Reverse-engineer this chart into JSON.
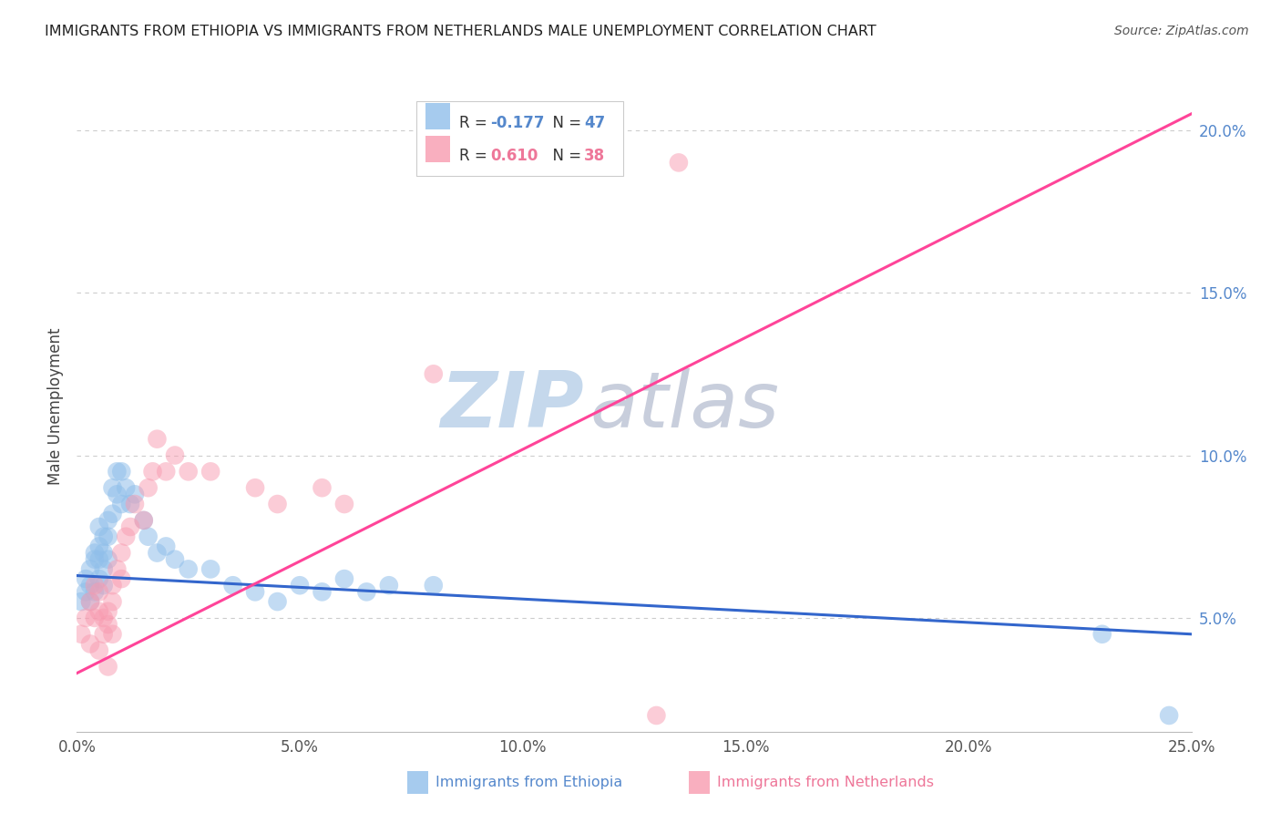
{
  "title": "IMMIGRANTS FROM ETHIOPIA VS IMMIGRANTS FROM NETHERLANDS MALE UNEMPLOYMENT CORRELATION CHART",
  "source": "Source: ZipAtlas.com",
  "ylabel": "Male Unemployment",
  "x_min": 0.0,
  "x_max": 0.25,
  "y_min": 0.015,
  "y_max": 0.215,
  "y_ticks": [
    0.05,
    0.1,
    0.15,
    0.2
  ],
  "y_tick_labels": [
    "5.0%",
    "10.0%",
    "15.0%",
    "20.0%"
  ],
  "x_ticks": [
    0.0,
    0.05,
    0.1,
    0.15,
    0.2,
    0.25
  ],
  "x_tick_labels": [
    "0.0%",
    "5.0%",
    "10.0%",
    "15.0%",
    "20.0%",
    "25.0%"
  ],
  "legend_r1": "R = ",
  "legend_v1": "-0.177",
  "legend_n1": "  N = ",
  "legend_nv1": "47",
  "legend_r2": "R =  ",
  "legend_v2": "0.610",
  "legend_n2": "  N = ",
  "legend_nv2": "38",
  "ethiopia_color": "#90BFEA",
  "netherlands_color": "#F89BB0",
  "regression_blue": "#3366CC",
  "regression_pink": "#FF4499",
  "watermark_zip": "ZIP",
  "watermark_atlas": "atlas",
  "watermark_color": "#C5D8EC",
  "watermark_atlas_color": "#C8CEDC",
  "bottom_legend_eth": "Immigrants from Ethiopia",
  "bottom_legend_neth": "Immigrants from Netherlands",
  "blue_label_color": "#5588CC",
  "pink_label_color": "#EE7799",
  "ethiopia_scatter_x": [
    0.001,
    0.002,
    0.002,
    0.003,
    0.003,
    0.003,
    0.004,
    0.004,
    0.004,
    0.005,
    0.005,
    0.005,
    0.005,
    0.006,
    0.006,
    0.006,
    0.006,
    0.007,
    0.007,
    0.007,
    0.008,
    0.008,
    0.009,
    0.009,
    0.01,
    0.01,
    0.011,
    0.012,
    0.013,
    0.015,
    0.016,
    0.018,
    0.02,
    0.022,
    0.025,
    0.03,
    0.035,
    0.04,
    0.045,
    0.05,
    0.055,
    0.06,
    0.065,
    0.07,
    0.08,
    0.23,
    0.245
  ],
  "ethiopia_scatter_y": [
    0.055,
    0.058,
    0.062,
    0.06,
    0.055,
    0.065,
    0.07,
    0.058,
    0.068,
    0.062,
    0.072,
    0.068,
    0.078,
    0.07,
    0.065,
    0.075,
    0.06,
    0.075,
    0.068,
    0.08,
    0.082,
    0.09,
    0.088,
    0.095,
    0.085,
    0.095,
    0.09,
    0.085,
    0.088,
    0.08,
    0.075,
    0.07,
    0.072,
    0.068,
    0.065,
    0.065,
    0.06,
    0.058,
    0.055,
    0.06,
    0.058,
    0.062,
    0.058,
    0.06,
    0.06,
    0.045,
    0.02
  ],
  "netherlands_scatter_x": [
    0.001,
    0.002,
    0.003,
    0.003,
    0.004,
    0.004,
    0.005,
    0.005,
    0.005,
    0.006,
    0.006,
    0.007,
    0.007,
    0.007,
    0.008,
    0.008,
    0.008,
    0.009,
    0.01,
    0.01,
    0.011,
    0.012,
    0.013,
    0.015,
    0.016,
    0.017,
    0.018,
    0.02,
    0.022,
    0.025,
    0.03,
    0.04,
    0.045,
    0.055,
    0.06,
    0.08,
    0.13,
    0.135
  ],
  "netherlands_scatter_y": [
    0.045,
    0.05,
    0.055,
    0.042,
    0.05,
    0.06,
    0.052,
    0.058,
    0.04,
    0.05,
    0.045,
    0.048,
    0.052,
    0.035,
    0.055,
    0.06,
    0.045,
    0.065,
    0.07,
    0.062,
    0.075,
    0.078,
    0.085,
    0.08,
    0.09,
    0.095,
    0.105,
    0.095,
    0.1,
    0.095,
    0.095,
    0.09,
    0.085,
    0.09,
    0.085,
    0.125,
    0.02,
    0.19
  ],
  "blue_line_x0": 0.0,
  "blue_line_y0": 0.063,
  "blue_line_x1": 0.25,
  "blue_line_y1": 0.045,
  "pink_line_x0": 0.0,
  "pink_line_y0": 0.033,
  "pink_line_x1": 0.25,
  "pink_line_y1": 0.205
}
